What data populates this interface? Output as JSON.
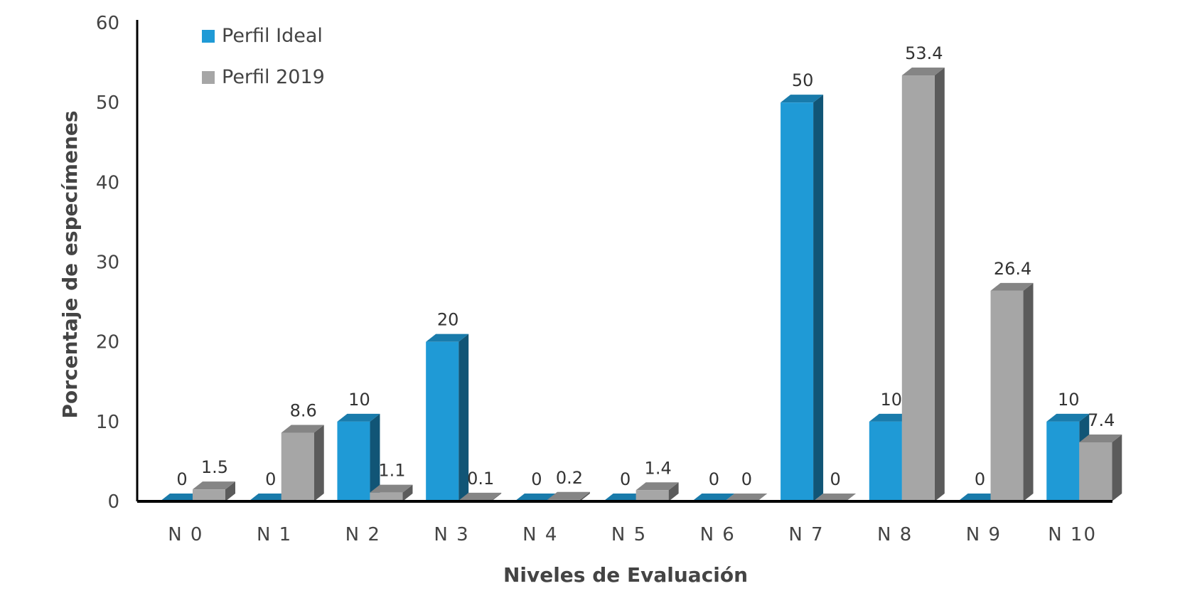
{
  "chart_data": {
    "type": "bar",
    "title": "",
    "xlabel": "Niveles de Evaluación",
    "ylabel": "Porcentaje de especímenes",
    "ylim": [
      0,
      60
    ],
    "yticks": [
      0,
      10,
      20,
      30,
      40,
      50,
      60
    ],
    "grid": false,
    "legend_position": "top-left",
    "categories": [
      "N 0",
      "N 1",
      "N 2",
      "N 3",
      "N 4",
      "N 5",
      "N 6",
      "N 7",
      "N 8",
      "N 9",
      "N 10"
    ],
    "series": [
      {
        "name": "Perfil Ideal",
        "color": "#1f9ad6",
        "values": [
          0,
          0,
          10,
          20,
          0,
          0,
          0,
          50,
          10,
          0,
          10
        ],
        "labels": [
          "0",
          "0",
          "10",
          "20",
          "0",
          "0",
          "0",
          "50",
          "10",
          "0",
          "10"
        ]
      },
      {
        "name": "Perfil 2019",
        "color": "#a6a6a6",
        "values": [
          1.5,
          8.6,
          1.1,
          0.1,
          0.2,
          1.4,
          0,
          0,
          53.4,
          26.4,
          7.4
        ],
        "labels": [
          "1.5",
          "8.6",
          "1.1",
          "0.1",
          "0.2",
          "1.4",
          "0",
          "0",
          "53.4",
          "26.4",
          "7.4"
        ]
      }
    ]
  }
}
